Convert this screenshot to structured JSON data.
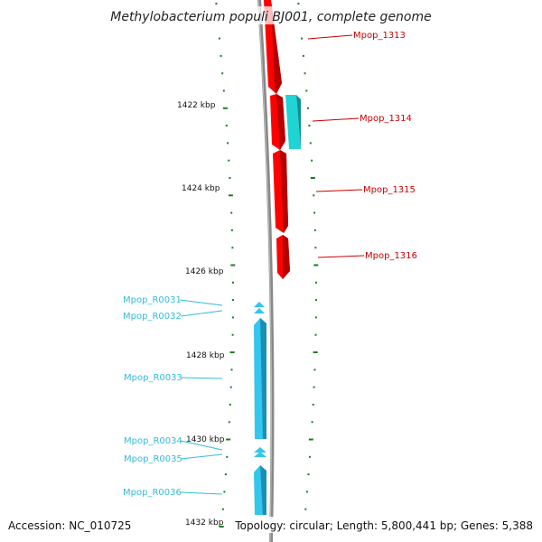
{
  "title": "Methylobacterium populi BJ001, complete genome",
  "accession": "Accession: NC_010725",
  "summary": "Topology: circular; Length: 5,800,441 bp; Genes: 5,388",
  "ticks": [
    "1422 kbp",
    "1424 kbp",
    "1426 kbp",
    "1428 kbp",
    "1430 kbp",
    "1432 kbp"
  ],
  "genes_red": [
    "Mpop_1313",
    "Mpop_1314",
    "Mpop_1315",
    "Mpop_1316"
  ],
  "genes_blue": [
    "Mpop_R0031",
    "Mpop_R0032",
    "Mpop_R0033",
    "Mpop_R0034",
    "Mpop_R0035",
    "Mpop_R0036"
  ],
  "colors": {
    "backbone": "#888888",
    "forward_cds": "#ff0000",
    "forward_cds_dark": "#b40000",
    "reverse_cds": "#20d4d4",
    "reverse_cds_dark": "#0f8f8f",
    "rna": "#33c6ee",
    "rna_dark": "#1a8fb3",
    "tick": "#1a7f1a",
    "red_label": "#cc0000",
    "blue_label": "#33bbdd"
  }
}
